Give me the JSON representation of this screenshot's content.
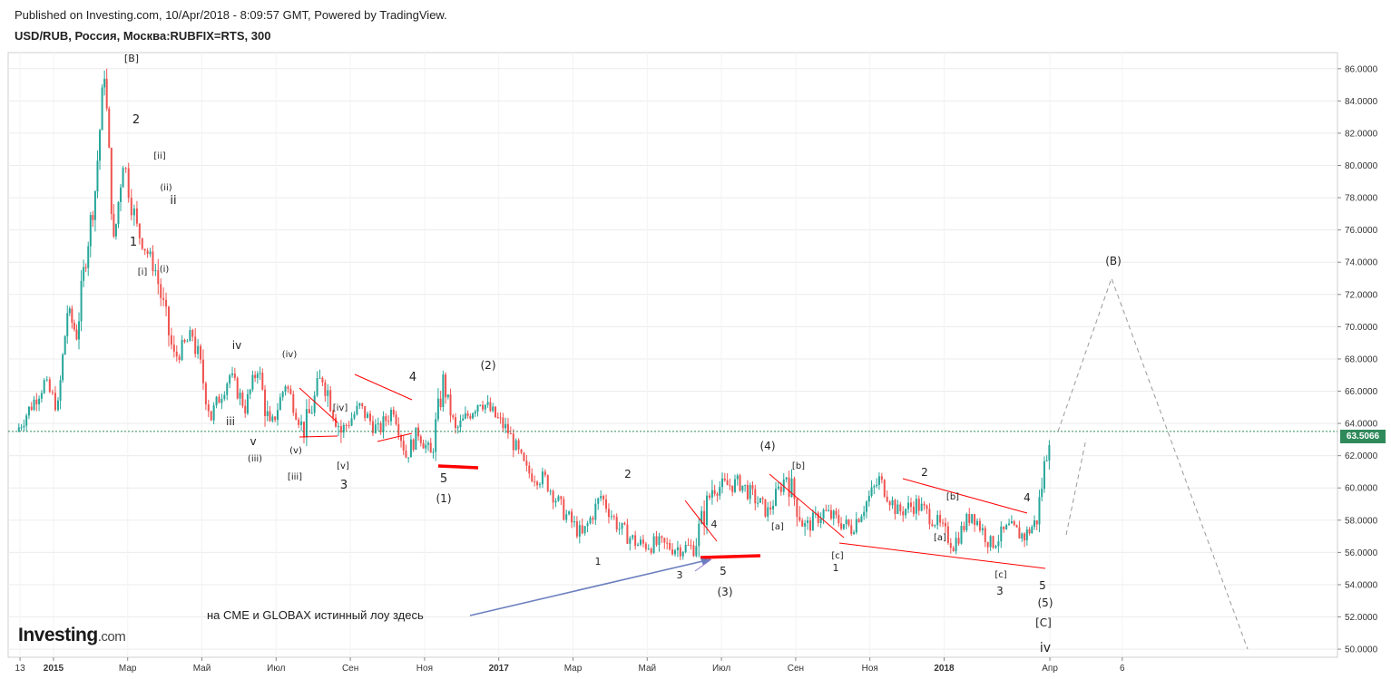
{
  "header": {
    "published": "Published on Investing.com, 10/Apr/2018 - 8:09:57 GMT, Powered by TradingView.",
    "symbol": "USD/RUB, Россия, Москва:RUBFIX=RTS, 300"
  },
  "logo": {
    "main": "Investing",
    "suffix": ".com"
  },
  "annotation": "на CME и GLOBAX истинный лоу здесь",
  "colors": {
    "up": "#26a69a",
    "down": "#ef5350",
    "trendline": "#ff0000",
    "projection": "#999999",
    "highlight_label": "#f5a623",
    "arrow": "#6b7fbf",
    "current_price": "#2f8a5b"
  },
  "chart_data": {
    "type": "candlestick",
    "title": "USD/RUB, Россия, Москва:RUBFIX=RTS, 300",
    "current_price": "63.5066",
    "y_axis": {
      "min": 49.5,
      "max": 87,
      "ticks": [
        "50.0000",
        "52.0000",
        "54.0000",
        "56.0000",
        "58.0000",
        "60.0000",
        "62.0000",
        "64.0000",
        "66.0000",
        "68.0000",
        "70.0000",
        "72.0000",
        "74.0000",
        "76.0000",
        "78.0000",
        "80.0000",
        "82.0000",
        "84.0000",
        "86.0000"
      ]
    },
    "x_axis": {
      "labels": [
        "13",
        "2015",
        "Мар",
        "Май",
        "Июл",
        "Сен",
        "Ноя",
        "2017",
        "Мар",
        "Май",
        "Июл",
        "Сен",
        "Ноя",
        "2018",
        "Апр",
        "6"
      ]
    },
    "price_path": [
      [
        "Dec 2014",
        63.5
      ],
      [
        "Dec 2014",
        66.5
      ],
      [
        "Jan 2015",
        65.0
      ],
      [
        "Jan 2015",
        71.0
      ],
      [
        "Jan 2015",
        69.5
      ],
      [
        "Jan 2015",
        74.5
      ],
      [
        "Feb 2015",
        78.5
      ],
      [
        "Feb 2015",
        86.0
      ],
      [
        "Feb 2015",
        75.0
      ],
      [
        "Feb 2015",
        80.5
      ],
      [
        "Mar 2015",
        76.0
      ],
      [
        "Mar 2015",
        73.5
      ],
      [
        "Apr 2015",
        68.0
      ],
      [
        "Apr 2015",
        69.5
      ],
      [
        "May 2015",
        64.5
      ],
      [
        "May 2015",
        67.0
      ],
      [
        "Jun 2015",
        65.0
      ],
      [
        "Jun 2015",
        67.5
      ],
      [
        "Jun 2015",
        63.5
      ],
      [
        "Jul 2015",
        66.5
      ],
      [
        "Jul 2015",
        63.5
      ],
      [
        "Aug 2015",
        67.0
      ],
      [
        "Aug 2015",
        63.5
      ],
      [
        "Sep 2015",
        65.0
      ],
      [
        "Sep 2015",
        63.5
      ],
      [
        "Oct 2015",
        65.0
      ],
      [
        "Oct 2015",
        62.0
      ],
      [
        "Oct 2015",
        63.5
      ],
      [
        "Nov 2015",
        62.0
      ],
      [
        "Nov 2015",
        66.5
      ],
      [
        "Nov 2015",
        63.5
      ],
      [
        "Dec 2015",
        65.5
      ],
      [
        "Jan 2016",
        63.5
      ],
      [
        "Jan 2016",
        61.0
      ],
      [
        "Feb 2016",
        60.5
      ],
      [
        "Feb 2016",
        58.5
      ],
      [
        "Mar 2016",
        57.0
      ],
      [
        "Mar 2016",
        59.5
      ],
      [
        "Apr 2016",
        57.5
      ],
      [
        "Apr 2016",
        56.5
      ],
      [
        "May 2016",
        56.5
      ],
      [
        "May 2016",
        56.3
      ],
      [
        "Jun 2016",
        56.3
      ],
      [
        "Jun 2016",
        60.0
      ],
      [
        "Jul 2016",
        60.3
      ],
      [
        "Aug 2016",
        58.5
      ],
      [
        "Aug 2016",
        60.8
      ],
      [
        "Sep 2016",
        57.5
      ],
      [
        "Sep 2016",
        58.5
      ],
      [
        "Oct 2016",
        57.5
      ],
      [
        "Nov 2016",
        60.5
      ],
      [
        "Nov 2016",
        58.5
      ],
      [
        "Dec 2016",
        59.0
      ],
      [
        "Dec 2016",
        58.0
      ],
      [
        "Jan 2017",
        56.5
      ],
      [
        "Jan 2017",
        58.5
      ],
      [
        "Feb 2017",
        56.5
      ],
      [
        "Feb 2017",
        57.5
      ],
      [
        "Mar 2017",
        57.0
      ],
      [
        "Mar 2017",
        58.0
      ],
      [
        "Mar 2017",
        63.5
      ]
    ],
    "projection": [
      [
        "Mar 2018",
        63.5
      ],
      [
        "Apr 2018",
        73.0
      ],
      [
        "Jul 2018",
        50.0
      ]
    ],
    "wave_labels": [
      "[B]",
      "2",
      "[ii]",
      "(ii)",
      "ii",
      "1",
      "[i]",
      "(i)",
      "iv",
      "iii",
      "v",
      "(iii)",
      "(iv)",
      "(v)",
      "[iii]",
      "[iv]",
      "[v]",
      "3",
      "4",
      "(2)",
      "5",
      "(1)",
      "2",
      "1",
      "3",
      "4",
      "5",
      "(3)",
      "(4)",
      "[b]",
      "[a]",
      "[c]",
      "1",
      "2",
      "[b]",
      "[a]",
      "4",
      "[c]",
      "3",
      "5",
      "(5)",
      "[C]",
      "iv",
      "(B)"
    ]
  }
}
